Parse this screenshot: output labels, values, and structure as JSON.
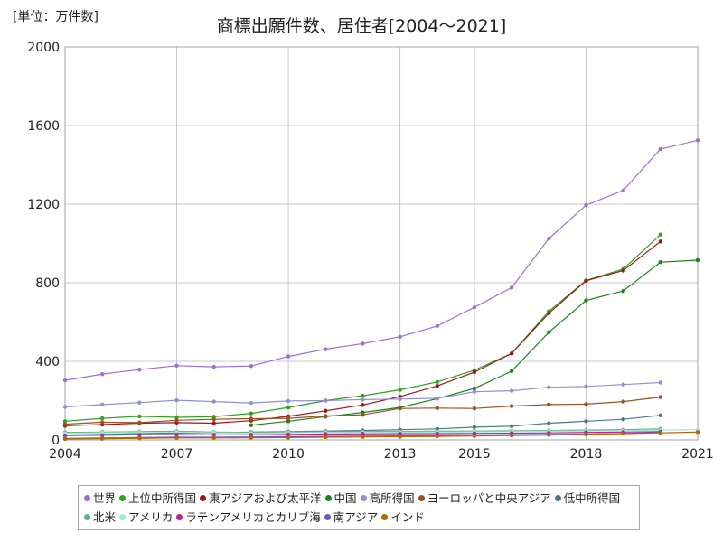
{
  "unit_label": "[単位：万件数]",
  "chart_data": {
    "type": "line",
    "title": "商標出願件数、居住者[2004～2021]",
    "xlabel": "",
    "ylabel": "",
    "xlim": [
      2004,
      2021
    ],
    "ylim": [
      0,
      2000
    ],
    "x_ticks": [
      2004,
      2007,
      2010,
      2013,
      2015,
      2018,
      2021
    ],
    "y_ticks": [
      0,
      400,
      800,
      1200,
      1600,
      2000
    ],
    "grid": true,
    "legend_position": "bottom",
    "x": [
      2004,
      2005,
      2006,
      2007,
      2008,
      2009,
      2010,
      2011,
      2012,
      2013,
      2014,
      2015,
      2016,
      2017,
      2018,
      2019,
      2020,
      2021
    ],
    "series": [
      {
        "name": "世界",
        "color": "#a070d0",
        "values": [
          303,
          335,
          358,
          378,
          372,
          376,
          425,
          462,
          490,
          525,
          580,
          675,
          775,
          1025,
          1195,
          1270,
          1480,
          1525
        ]
      },
      {
        "name": "上位中所得国",
        "color": "#30a020",
        "values": [
          95,
          110,
          120,
          115,
          118,
          135,
          165,
          200,
          225,
          255,
          295,
          355,
          440,
          655,
          812,
          870,
          1045,
          null
        ]
      },
      {
        "name": "東アジアおよび太平洋",
        "color": "#a01818",
        "values": [
          72,
          78,
          85,
          88,
          85,
          98,
          120,
          148,
          178,
          220,
          275,
          345,
          440,
          645,
          810,
          862,
          1010,
          null
        ]
      },
      {
        "name": "中国",
        "color": "#208020",
        "values": [
          null,
          null,
          null,
          null,
          null,
          75,
          95,
          118,
          140,
          165,
          210,
          262,
          350,
          548,
          710,
          758,
          905,
          915
        ]
      },
      {
        "name": "高所得国",
        "color": "#9090d8",
        "values": [
          168,
          180,
          190,
          202,
          195,
          188,
          198,
          200,
          205,
          208,
          212,
          245,
          250,
          268,
          272,
          282,
          292,
          null
        ]
      },
      {
        "name": "ヨーロッパと中央アジア",
        "color": "#a05020",
        "values": [
          80,
          90,
          88,
          100,
          105,
          108,
          110,
          122,
          128,
          160,
          162,
          160,
          172,
          180,
          182,
          195,
          218,
          null
        ]
      },
      {
        "name": "低中所得国",
        "color": "#4a7a80",
        "values": [
          25,
          28,
          32,
          35,
          36,
          40,
          42,
          45,
          48,
          52,
          56,
          65,
          70,
          85,
          95,
          105,
          125,
          null
        ]
      },
      {
        "name": "北米",
        "color": "#60b080",
        "values": [
          38,
          40,
          42,
          44,
          40,
          38,
          40,
          42,
          42,
          43,
          44,
          45,
          46,
          48,
          50,
          52,
          56,
          null
        ]
      },
      {
        "name": "アメリカ",
        "color": "#a0e8d8",
        "values": [
          34,
          36,
          38,
          40,
          36,
          34,
          36,
          38,
          38,
          39,
          40,
          41,
          42,
          44,
          45,
          47,
          50,
          52
        ]
      },
      {
        "name": "ラテンアメリカとカリブ海",
        "color": "#c02090",
        "values": [
          22,
          24,
          26,
          27,
          26,
          26,
          28,
          30,
          31,
          32,
          32,
          33,
          34,
          36,
          38,
          40,
          42,
          null
        ]
      },
      {
        "name": "南アジア",
        "color": "#6060c0",
        "values": [
          8,
          10,
          12,
          14,
          14,
          15,
          16,
          18,
          19,
          20,
          21,
          24,
          26,
          28,
          30,
          33,
          38,
          null
        ]
      },
      {
        "name": "インド",
        "color": "#b06a00",
        "values": [
          5,
          6,
          8,
          10,
          10,
          11,
          12,
          14,
          15,
          16,
          18,
          20,
          22,
          25,
          28,
          32,
          36,
          40
        ]
      }
    ]
  }
}
